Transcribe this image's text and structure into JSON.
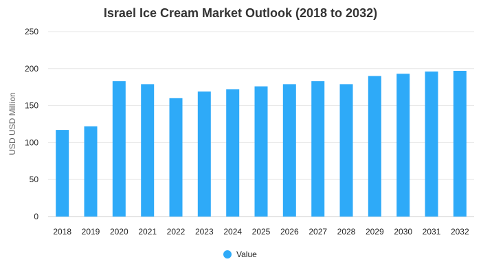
{
  "chart_data": {
    "type": "bar",
    "title": "Israel Ice Cream Market Outlook (2018 to 2032)",
    "xlabel": "",
    "ylabel": "USD USD Million",
    "categories": [
      "2018",
      "2019",
      "2020",
      "2021",
      "2022",
      "2023",
      "2024",
      "2025",
      "2026",
      "2027",
      "2028",
      "2029",
      "2030",
      "2031",
      "2032"
    ],
    "series": [
      {
        "name": "Value",
        "color": "#2eaaf8",
        "values": [
          117,
          122,
          183,
          179,
          160,
          169,
          172,
          176,
          179,
          183,
          179,
          190,
          193,
          196,
          197
        ]
      }
    ],
    "ylim": [
      0,
      250
    ],
    "yticks": [
      0,
      50,
      100,
      150,
      200,
      250
    ],
    "grid": true,
    "legend_position": "bottom-center"
  }
}
